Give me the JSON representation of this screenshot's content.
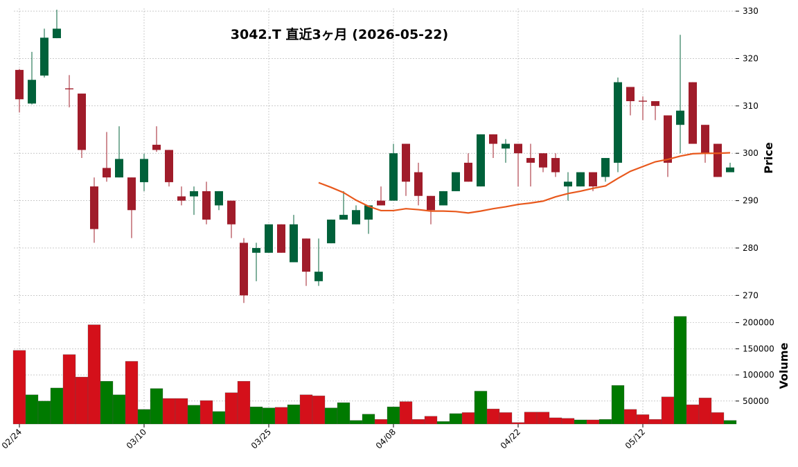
{
  "chart_data": {
    "type": "candlestick",
    "title": "3042.T  直近3ヶ月  (2026-05-22)",
    "categories": [
      "02/24",
      null,
      null,
      null,
      null,
      null,
      null,
      null,
      null,
      null,
      "03/10",
      null,
      null,
      null,
      null,
      null,
      null,
      null,
      null,
      null,
      "03/25",
      null,
      null,
      null,
      null,
      null,
      null,
      null,
      null,
      null,
      "04/08",
      null,
      null,
      null,
      null,
      null,
      null,
      null,
      null,
      null,
      "04/22",
      null,
      null,
      null,
      null,
      null,
      null,
      null,
      null,
      null,
      "05/12",
      null,
      null,
      null,
      null,
      null,
      null,
      null
    ],
    "open": [
      317.6,
      310.5,
      316.4,
      324.3,
      313.7,
      312.6,
      293,
      296.9,
      294.9,
      294.9,
      293.9,
      301.8,
      300.7,
      290.9,
      290.9,
      292,
      289,
      290,
      281.1,
      279,
      279,
      285,
      277,
      282,
      273,
      281,
      286,
      285,
      286,
      290,
      290,
      302,
      296,
      291,
      289,
      292,
      298,
      293,
      304,
      301,
      302,
      299,
      300,
      299,
      293,
      293,
      296,
      295,
      298,
      314,
      311.1,
      311,
      308,
      306,
      315,
      306,
      302,
      296
    ],
    "high": [
      317.8,
      321.4,
      326.3,
      330.3,
      316.5,
      312.6,
      294.9,
      304.5,
      305.7,
      294.9,
      299.9,
      305.7,
      300.7,
      293,
      293,
      294,
      292,
      290,
      282.1,
      281.1,
      285,
      285,
      287,
      282,
      282,
      286,
      292,
      289,
      289,
      293,
      302,
      302,
      298,
      291,
      292,
      296,
      300,
      304,
      304,
      303,
      302,
      302,
      300,
      300,
      296,
      296,
      296,
      299,
      316,
      314,
      312,
      311,
      308,
      325,
      315,
      306,
      302,
      298
    ],
    "low": [
      308.6,
      310.3,
      316,
      324.3,
      309.7,
      299,
      281.1,
      294,
      294.9,
      282.1,
      292,
      300.3,
      293,
      289,
      287,
      285,
      288,
      282.1,
      268.4,
      273,
      279,
      279,
      277,
      272,
      272,
      281,
      286,
      285,
      283,
      289,
      290,
      291,
      289,
      285,
      289,
      292,
      294,
      293,
      299,
      298,
      293,
      293,
      296,
      295,
      290,
      293,
      292,
      294,
      296,
      308,
      307,
      307,
      295,
      300,
      302,
      298,
      295,
      296
    ],
    "close": [
      311.4,
      315.5,
      324.4,
      326.3,
      313.5,
      300.7,
      284,
      294.9,
      298.8,
      288,
      298.8,
      300.7,
      293.9,
      290,
      292,
      286,
      292,
      285,
      270,
      280,
      285,
      279,
      285,
      275,
      275,
      286,
      287,
      288,
      289,
      289,
      300,
      294,
      291,
      288,
      292,
      296,
      294,
      304,
      302,
      302,
      300,
      298,
      297,
      296,
      294,
      296,
      293,
      299,
      315,
      311,
      310.9,
      310,
      298,
      309,
      302,
      300,
      295,
      297
    ],
    "up_color": "#00613a",
    "down_color": "#a01c2a",
    "ylim": [
      268,
      330.6
    ],
    "yticks": [
      270,
      280,
      290,
      300,
      310,
      320,
      330
    ],
    "ylabel": "Price",
    "grid": true,
    "overlay": {
      "color": "#e8581c",
      "values": [
        null,
        null,
        null,
        null,
        null,
        null,
        null,
        null,
        null,
        null,
        null,
        null,
        null,
        null,
        null,
        null,
        null,
        null,
        null,
        null,
        null,
        null,
        null,
        null,
        293.8,
        292.8,
        291.7,
        290.1,
        288.8,
        287.9,
        287.9,
        288.3,
        288.1,
        287.8,
        287.8,
        287.7,
        287.4,
        287.8,
        288.3,
        288.7,
        289.2,
        289.5,
        289.9,
        290.8,
        291.5,
        292,
        292.6,
        293.1,
        294.7,
        296.2,
        297.2,
        298.2,
        298.7,
        299.4,
        299.9,
        300,
        300,
        300.1
      ]
    },
    "volume": {
      "ylabel": "Volume",
      "ylim": [
        6000,
        226000
      ],
      "yticks": [
        50000,
        100000,
        150000,
        200000
      ],
      "values": [
        147000,
        62000,
        50000,
        75000,
        139000,
        96000,
        196000,
        88000,
        62000,
        126000,
        34000,
        74000,
        55000,
        55000,
        42000,
        51000,
        30000,
        66000,
        88000,
        39000,
        37000,
        38000,
        43000,
        62000,
        60000,
        37000,
        47000,
        13000,
        25000,
        15000,
        39000,
        49000,
        15000,
        21000,
        11000,
        26000,
        28000,
        69000,
        35000,
        28000,
        9000,
        29000,
        29000,
        18000,
        17000,
        14000,
        14000,
        15000,
        80000,
        34000,
        24000,
        15000,
        58000,
        212000,
        43000,
        56000,
        28000,
        13000
      ],
      "colors": [
        "#d4101a",
        "#007a00",
        "#007a00",
        "#007a00",
        "#d4101a",
        "#d4101a",
        "#d4101a",
        "#007a00",
        "#007a00",
        "#d4101a",
        "#007a00",
        "#007a00",
        "#d4101a",
        "#d4101a",
        "#007a00",
        "#d4101a",
        "#007a00",
        "#d4101a",
        "#d4101a",
        "#007a00",
        "#007a00",
        "#d4101a",
        "#007a00",
        "#d4101a",
        "#d4101a",
        "#007a00",
        "#007a00",
        "#007a00",
        "#007a00",
        "#d4101a",
        "#007a00",
        "#d4101a",
        "#d4101a",
        "#d4101a",
        "#007a00",
        "#007a00",
        "#d4101a",
        "#007a00",
        "#d4101a",
        "#d4101a",
        "#d4101a",
        "#d4101a",
        "#d4101a",
        "#d4101a",
        "#d4101a",
        "#007a00",
        "#d4101a",
        "#007a00",
        "#007a00",
        "#d4101a",
        "#d4101a",
        "#d4101a",
        "#d4101a",
        "#007a00",
        "#d4101a",
        "#d4101a",
        "#d4101a",
        "#007a00"
      ]
    }
  }
}
